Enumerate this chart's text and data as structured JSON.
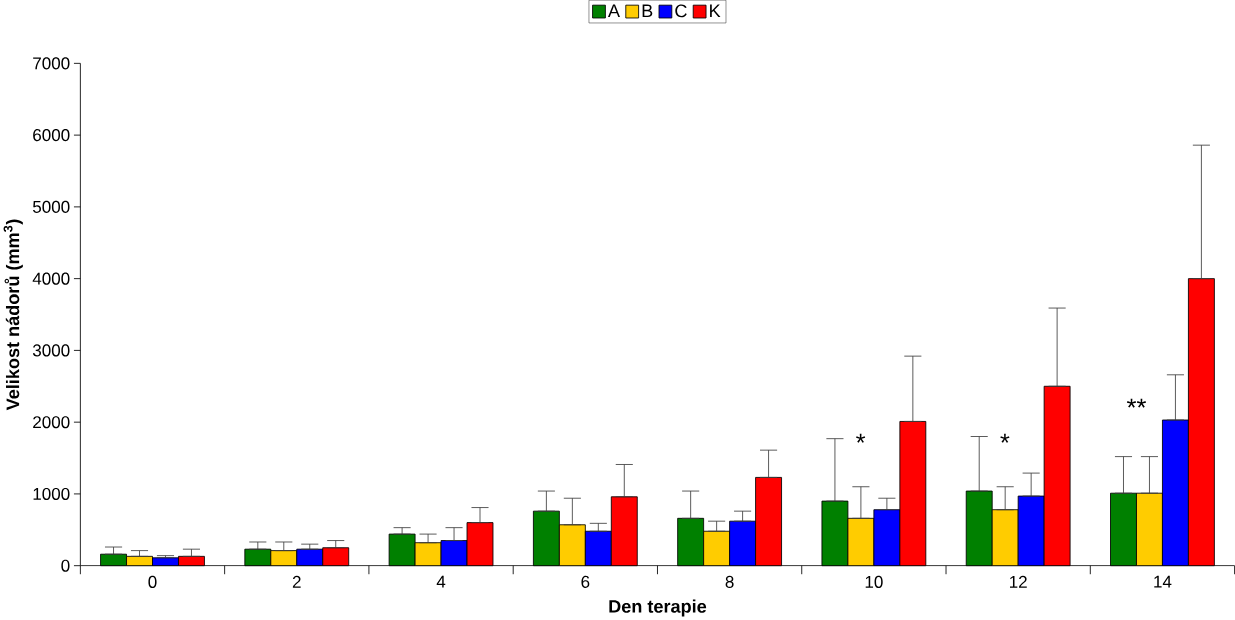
{
  "chart_data": {
    "type": "bar",
    "xlabel": "Den terapie",
    "ylabel": "Velikost nádorů (mm$^{3}$)",
    "categories": [
      "0",
      "2",
      "4",
      "6",
      "8",
      "10",
      "12",
      "14"
    ],
    "series": [
      {
        "name": "A",
        "color": "#008000",
        "values": [
          160,
          230,
          440,
          760,
          660,
          900,
          1040,
          1010
        ],
        "errors": [
          [
            160,
            260
          ],
          [
            230,
            330
          ],
          [
            440,
            530
          ],
          [
            760,
            1040
          ],
          [
            660,
            1040
          ],
          [
            900,
            1770
          ],
          [
            1040,
            1800
          ],
          [
            1010,
            1520
          ]
        ]
      },
      {
        "name": "B",
        "color": "#ffcc00",
        "values": [
          130,
          210,
          320,
          570,
          480,
          660,
          780,
          1010
        ],
        "errors": [
          [
            130,
            210
          ],
          [
            210,
            330
          ],
          [
            320,
            440
          ],
          [
            570,
            940
          ],
          [
            480,
            620
          ],
          [
            660,
            1100
          ],
          [
            780,
            1100
          ],
          [
            1010,
            1520
          ]
        ]
      },
      {
        "name": "C",
        "color": "#0000ff",
        "values": [
          110,
          230,
          350,
          480,
          620,
          780,
          970,
          2030
        ],
        "errors": [
          [
            110,
            140
          ],
          [
            230,
            300
          ],
          [
            350,
            530
          ],
          [
            480,
            590
          ],
          [
            620,
            760
          ],
          [
            780,
            940
          ],
          [
            970,
            1290
          ],
          [
            2030,
            2660
          ]
        ]
      },
      {
        "name": "K",
        "color": "#ff0000",
        "values": [
          130,
          250,
          600,
          960,
          1230,
          2010,
          2500,
          4000
        ],
        "errors": [
          [
            130,
            230
          ],
          [
            250,
            350
          ],
          [
            600,
            810
          ],
          [
            960,
            1410
          ],
          [
            1230,
            1610
          ],
          [
            2010,
            2920
          ],
          [
            2500,
            3590
          ],
          [
            4000,
            5860
          ]
        ]
      }
    ],
    "ylim": [
      0,
      7000
    ],
    "yticks": [
      0,
      1000,
      2000,
      3000,
      4000,
      5000,
      6000,
      7000
    ],
    "grid": false,
    "legend": "top",
    "annotations": [
      "*",
      "*",
      "**"
    ]
  }
}
